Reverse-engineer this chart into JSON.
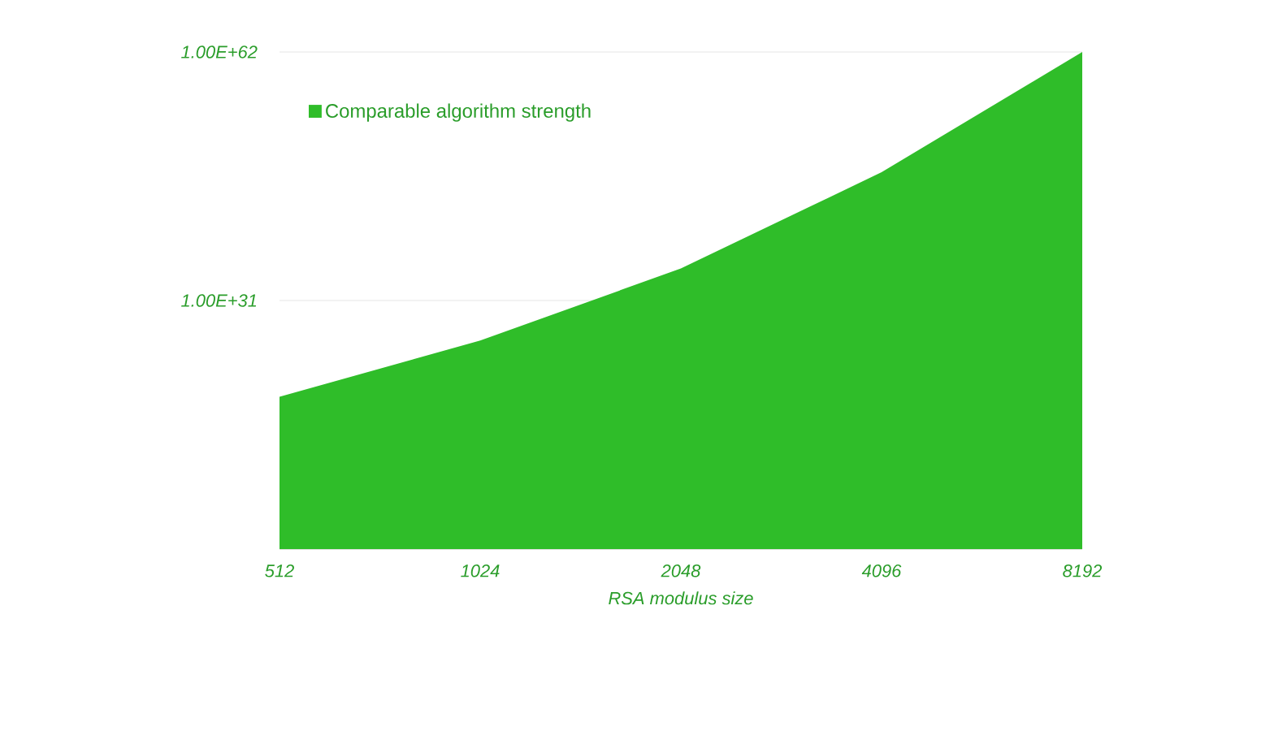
{
  "chart_data": {
    "type": "area",
    "categories": [
      "512",
      "1024",
      "2048",
      "4096",
      "8192"
    ],
    "series": [
      {
        "name": "Comparable algorithm strength",
        "color": "#2fbd29",
        "values": [
          1e+19,
          1e+26,
          1e+35,
          1e+47,
          1e+62
        ]
      }
    ],
    "xlabel": "RSA modulus size",
    "log": "y",
    "ylim": [
      1,
      1e+62
    ],
    "yticks": [
      {
        "value": 1e+31,
        "label": "1.00E+31"
      },
      {
        "value": 1e+62,
        "label": "1.00E+62"
      }
    ],
    "grid": "y",
    "legend": "top left"
  }
}
